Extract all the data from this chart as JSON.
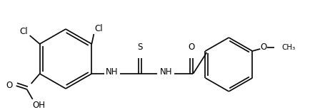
{
  "background": "#ffffff",
  "line_color": "#000000",
  "lw": 1.2,
  "fs": 8.5,
  "figsize": [
    4.34,
    1.58
  ],
  "dpi": 100,
  "xlim": [
    0,
    434
  ],
  "ylim": [
    0,
    158
  ]
}
